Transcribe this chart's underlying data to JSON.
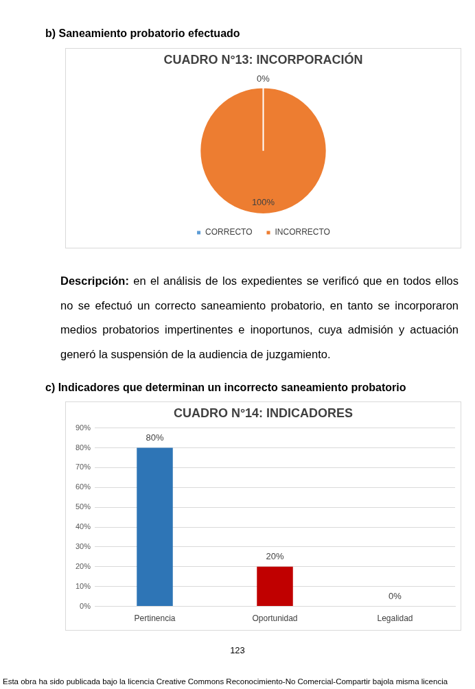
{
  "chart_data": [
    {
      "type": "pie",
      "title": "CUADRO N°13: INCORPORACIÓN",
      "categories": [
        "CORRECTO",
        "INCORRECTO"
      ],
      "values": [
        0,
        100
      ],
      "colors": [
        "#5b9bd5",
        "#ed7d31"
      ],
      "value_labels": [
        "0%",
        "100%"
      ],
      "legend": "bottom",
      "annotations": [
        "b)  Saneamiento probatorio efectuado",
        "Descripción: en el análisis de los expedientes se verificó que en todos ellos no se efectuó un correcto saneamiento probatorio, en tanto se incorporaron medios probatorios impertinentes e inoportunos, cuya admisión y actuación generó la suspensión de la audiencia de juzgamiento."
      ]
    },
    {
      "type": "bar",
      "title": "CUADRO N°14: INDICADORES",
      "categories": [
        "Pertinencia",
        "Oportunidad",
        "Legalidad"
      ],
      "values": [
        80,
        20,
        0
      ],
      "colors": [
        "#2e75b6",
        "#c00000",
        "#ffc000"
      ],
      "value_labels": [
        "80%",
        "20%",
        "0%"
      ],
      "ylim": [
        0,
        90
      ],
      "yticks": [
        {
          "value": 0,
          "label": "0%"
        },
        {
          "value": 10,
          "label": "10%"
        },
        {
          "value": 20,
          "label": "20%"
        },
        {
          "value": 30,
          "label": "30%"
        },
        {
          "value": 40,
          "label": "40%"
        },
        {
          "value": 50,
          "label": "50%"
        },
        {
          "value": 60,
          "label": "60%"
        },
        {
          "value": 70,
          "label": "70%"
        },
        {
          "value": 80,
          "label": "80%"
        },
        {
          "value": 90,
          "label": "90%"
        }
      ],
      "grid": "y",
      "annotations": [
        "c)  Indicadores que determinan un incorrecto saneamiento probatorio",
        "123",
        "Esta obra ha sido publicada bajo la licencia Creative Commons Reconocimiento-No Comercial-Compartir bajola misma licencia"
      ]
    }
  ]
}
